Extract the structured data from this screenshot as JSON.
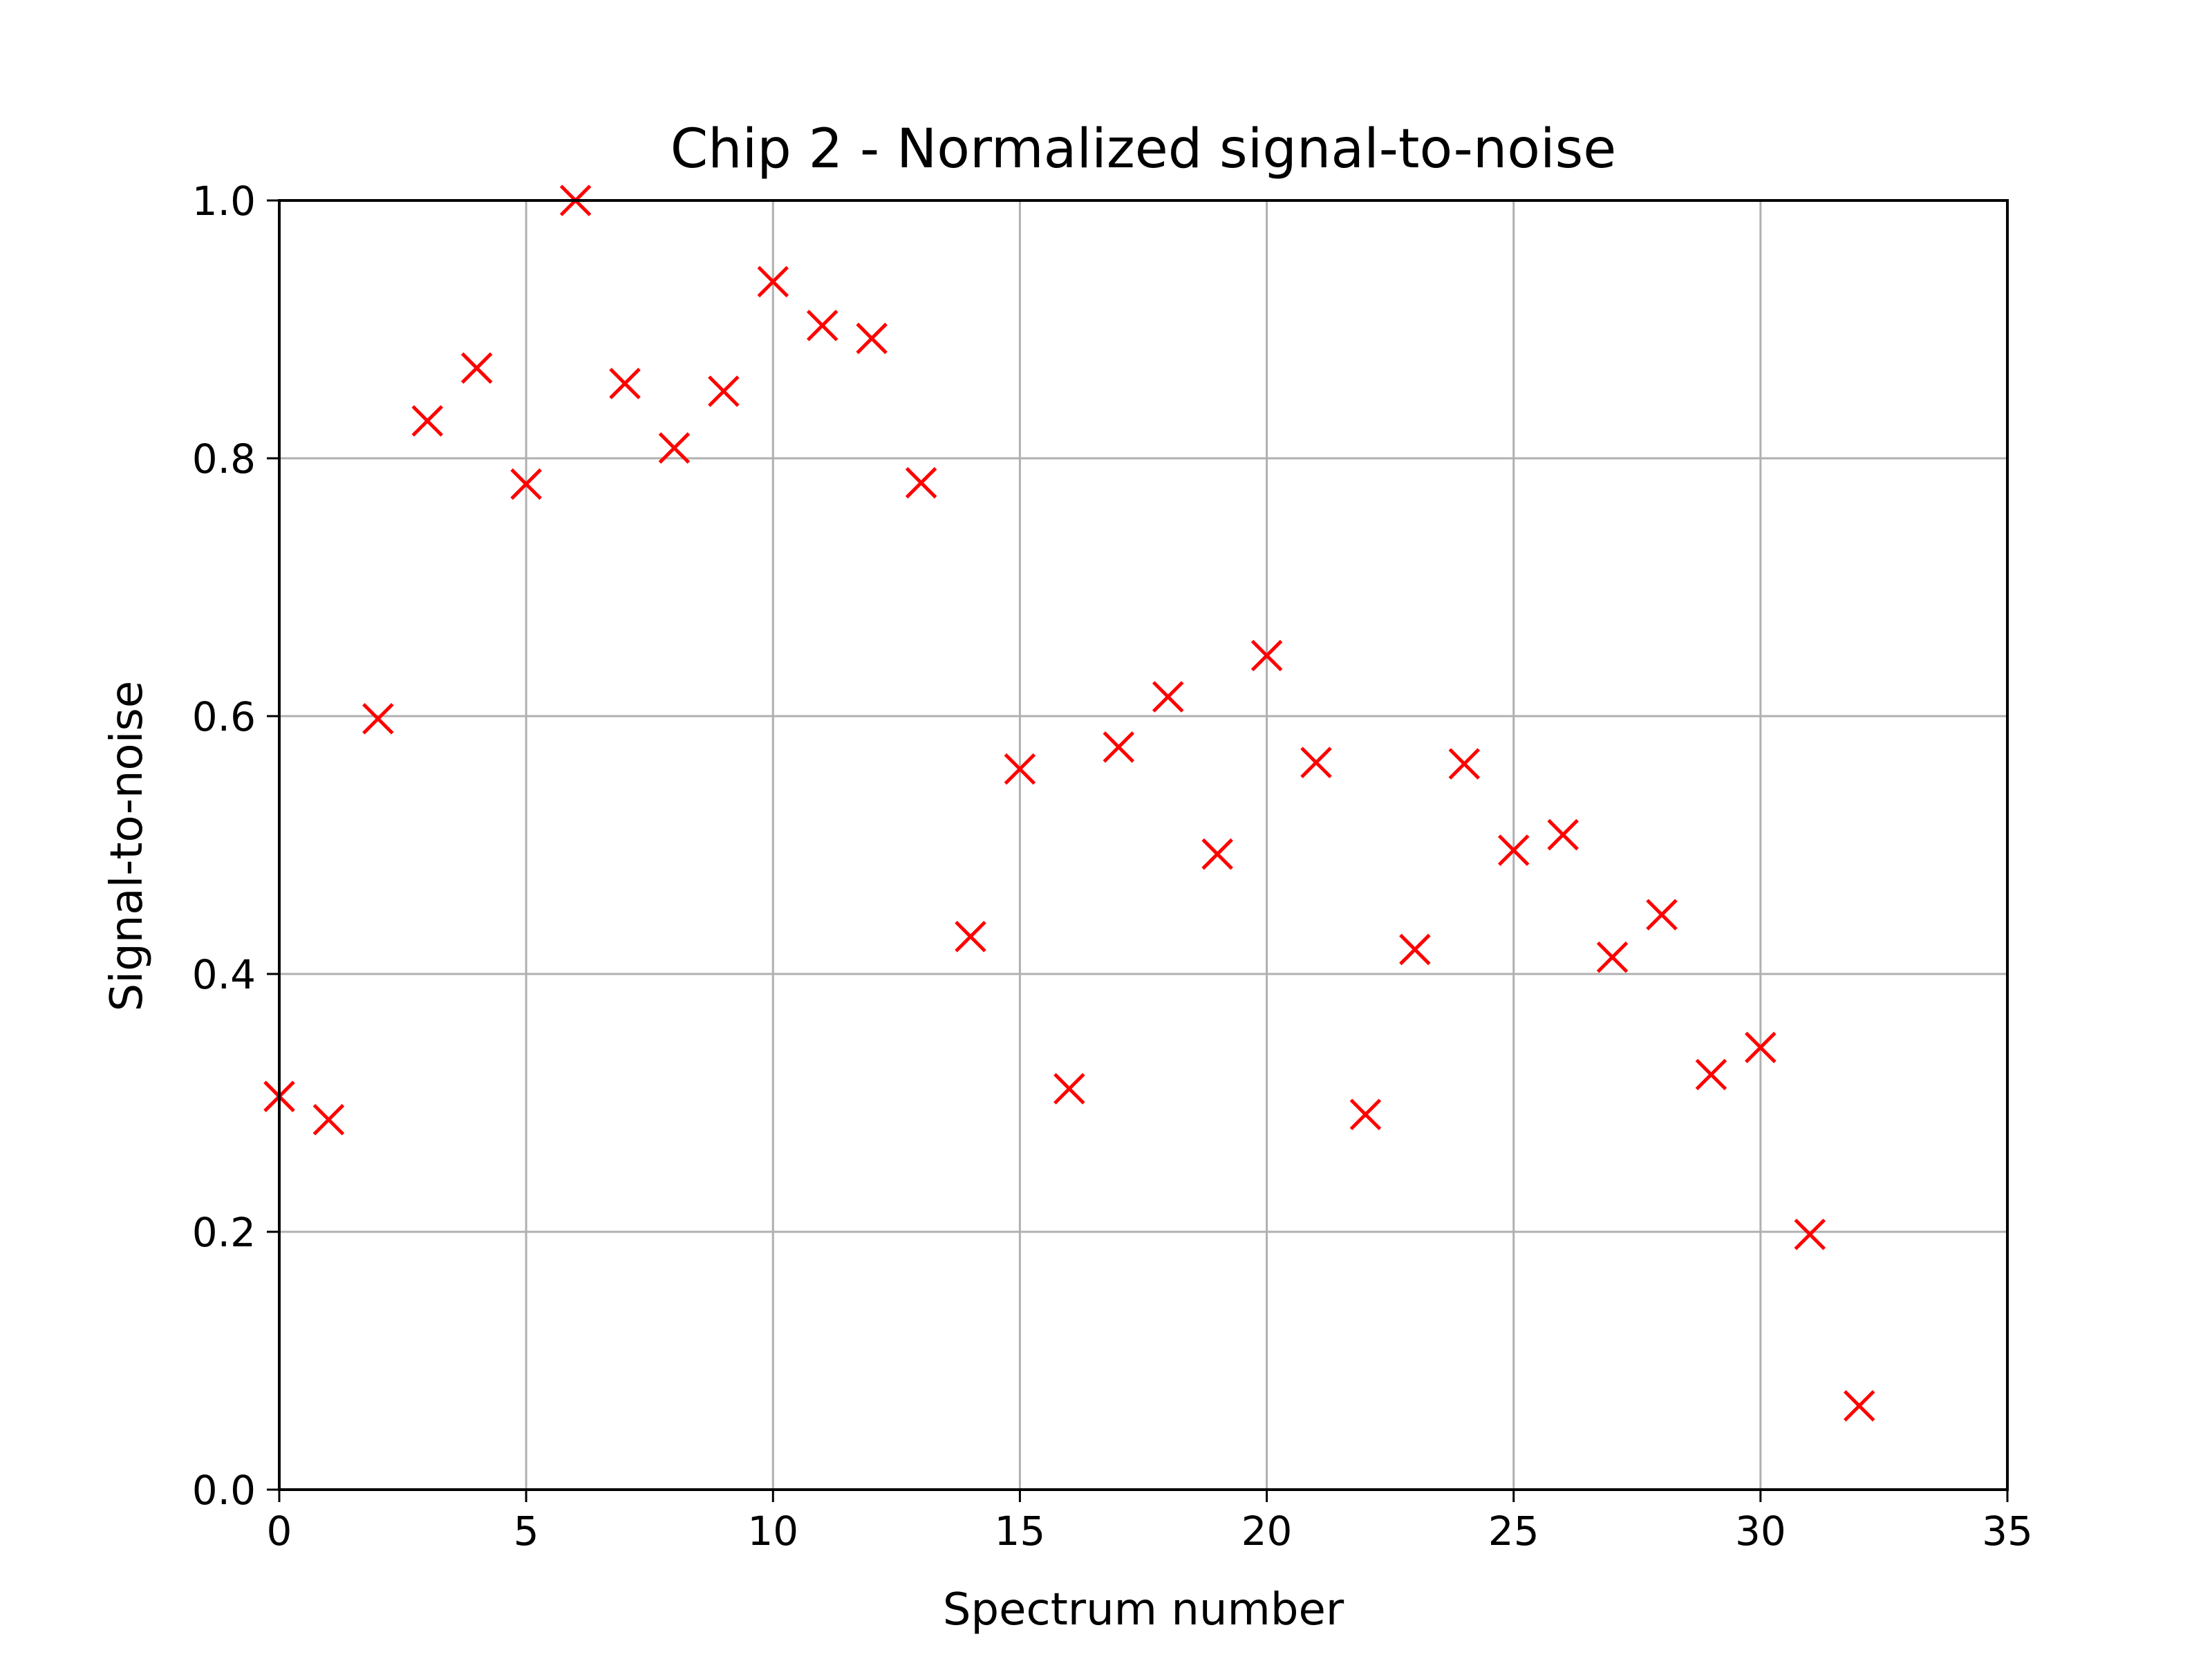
{
  "chart_data": {
    "type": "scatter",
    "title": "Chip 2 - Normalized signal-to-noise",
    "xlabel": "Spectrum number",
    "ylabel": "Signal-to-noise",
    "xlim": [
      0,
      35
    ],
    "ylim": [
      0.0,
      1.0
    ],
    "xticks": [
      0,
      5,
      10,
      15,
      20,
      25,
      30,
      35
    ],
    "xtick_labels": [
      "0",
      "5",
      "10",
      "15",
      "20",
      "25",
      "30",
      "35"
    ],
    "yticks": [
      0.0,
      0.2,
      0.4,
      0.6,
      0.8,
      1.0
    ],
    "ytick_labels": [
      "0.0",
      "0.2",
      "0.4",
      "0.6",
      "0.8",
      "1.0"
    ],
    "grid": true,
    "marker": "x",
    "marker_color": "#ff0000",
    "series": [
      {
        "x": [
          0,
          1,
          2,
          3,
          4,
          5,
          6,
          7,
          8,
          9,
          10,
          11,
          12,
          13,
          14,
          15,
          16,
          17,
          18,
          19,
          20,
          21,
          22,
          23,
          24,
          25,
          26,
          27,
          28,
          29,
          30,
          31,
          32
        ],
        "y": [
          0.305,
          0.287,
          0.598,
          0.829,
          0.87,
          0.78,
          1.0,
          0.858,
          0.808,
          0.852,
          0.937,
          0.903,
          0.893,
          0.781,
          0.429,
          0.559,
          0.311,
          0.576,
          0.615,
          0.493,
          0.647,
          0.564,
          0.291,
          0.419,
          0.563,
          0.496,
          0.508,
          0.413,
          0.446,
          0.322,
          0.343,
          0.198,
          0.065
        ]
      }
    ]
  }
}
